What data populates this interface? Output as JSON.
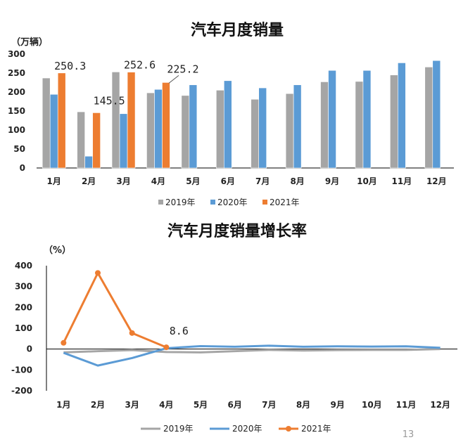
{
  "page_number": "13",
  "colors": {
    "2019": "#a5a5a5",
    "2020": "#5b9bd5",
    "2021": "#ed7d31"
  },
  "chart_data": [
    {
      "type": "bar",
      "title": "汽车月度销量",
      "unit_label": "（万辆）",
      "categories": [
        "1月",
        "2月",
        "3月",
        "4月",
        "5月",
        "6月",
        "7月",
        "8月",
        "9月",
        "10月",
        "11月",
        "12月"
      ],
      "ylim": [
        0,
        300
      ],
      "yticks": [
        0,
        50,
        100,
        150,
        200,
        250,
        300
      ],
      "legend_position": "bottom",
      "series": [
        {
          "name": "2019年",
          "values": [
            237,
            148,
            253,
            198,
            191,
            205,
            181,
            196,
            227,
            228,
            245,
            266
          ]
        },
        {
          "name": "2020年",
          "values": [
            194,
            31,
            143,
            207,
            219,
            230,
            211,
            219,
            257,
            257,
            277,
            283
          ]
        },
        {
          "name": "2021年",
          "values": [
            250.3,
            145.5,
            252.6,
            225.2,
            null,
            null,
            null,
            null,
            null,
            null,
            null,
            null
          ]
        }
      ],
      "data_labels": [
        {
          "series": 2,
          "index": 0,
          "text": "250.3"
        },
        {
          "series": 2,
          "index": 1,
          "text": "145.5"
        },
        {
          "series": 2,
          "index": 2,
          "text": "252.6"
        },
        {
          "series": 2,
          "index": 3,
          "text": "225.2"
        }
      ]
    },
    {
      "type": "line",
      "title": "汽车月度销量增长率",
      "unit_label": "（%）",
      "categories": [
        "1月",
        "2月",
        "3月",
        "4月",
        "5月",
        "6月",
        "7月",
        "8月",
        "9月",
        "10月",
        "11月",
        "12月"
      ],
      "ylim": [
        -200,
        400
      ],
      "yticks": [
        -200,
        -100,
        0,
        100,
        200,
        300,
        400
      ],
      "legend_position": "bottom",
      "series": [
        {
          "name": "2019年",
          "values": [
            -16,
            -10,
            -5,
            -14,
            -16,
            -10,
            -4,
            -7,
            -5,
            -4,
            -4,
            0
          ]
        },
        {
          "name": "2020年",
          "values": [
            -18,
            -79,
            -43,
            4,
            14,
            11,
            16,
            11,
            13,
            12,
            13,
            6
          ]
        },
        {
          "name": "2021年",
          "values": [
            30,
            365,
            77,
            8.6,
            null,
            null,
            null,
            null,
            null,
            null,
            null,
            null
          ]
        }
      ],
      "data_labels": [
        {
          "series": 2,
          "index": 3,
          "text": "8.6"
        }
      ]
    }
  ]
}
